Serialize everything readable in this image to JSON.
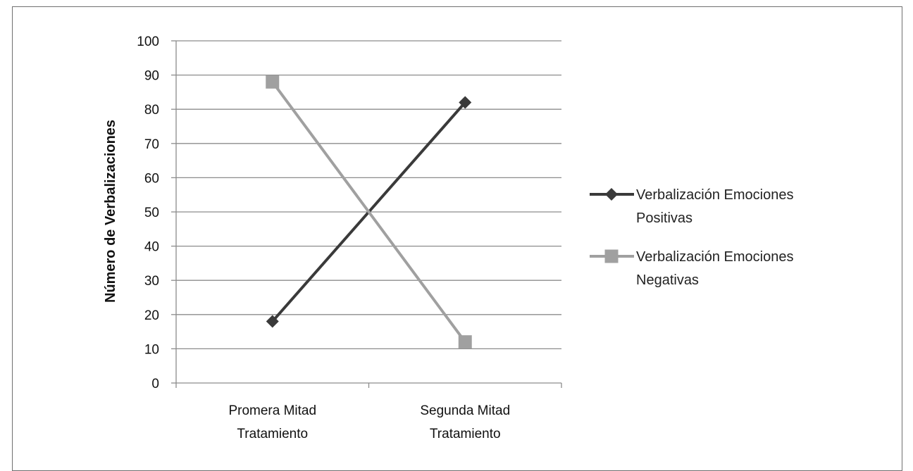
{
  "chart_data": {
    "type": "line",
    "categories": [
      [
        "Promera Mitad",
        "Tratamiento"
      ],
      [
        "Segunda Mitad",
        "Tratamiento"
      ]
    ],
    "series": [
      {
        "name": [
          "Verbalización Emociones",
          "Positivas"
        ],
        "values": [
          18,
          82
        ],
        "color": "#3a3a3a",
        "marker": "diamond"
      },
      {
        "name": [
          "Verbalización Emociones",
          "Negativas"
        ],
        "values": [
          88,
          12
        ],
        "color": "#a0a0a0",
        "marker": "square"
      }
    ],
    "title": "",
    "xlabel": "",
    "ylabel": "Número de Verbalizaciones",
    "ylim": [
      0,
      100
    ],
    "yticks": [
      0,
      10,
      20,
      30,
      40,
      50,
      60,
      70,
      80,
      90,
      100
    ],
    "grid": true,
    "legend_position": "right"
  }
}
